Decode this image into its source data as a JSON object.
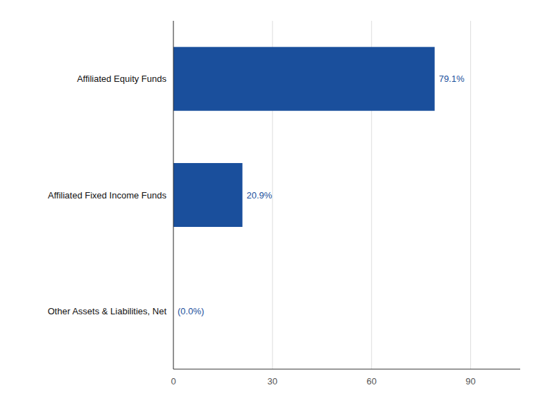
{
  "chart_data": {
    "type": "bar",
    "orientation": "horizontal",
    "categories": [
      "Other Assets & Liabilities, Net",
      "Affiliated Fixed Income Funds",
      "Affiliated Equity Funds"
    ],
    "values": [
      0.0,
      20.9,
      79.1
    ],
    "value_labels": [
      "(0.0%)",
      "20.9%",
      "79.1%"
    ],
    "data_labels": true,
    "color": "#1a4f9c",
    "xlim": [
      0,
      105
    ],
    "xticks": [
      0,
      30,
      60,
      90
    ],
    "grid": true
  }
}
